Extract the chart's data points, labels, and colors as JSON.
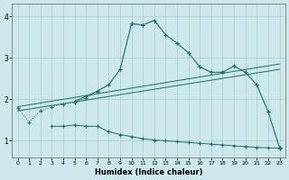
{
  "xlabel": "Humidex (Indice chaleur)",
  "background_color": "#cce8ec",
  "grid_color": "#aacccc",
  "line_color": "#1a6b6b",
  "xlim": [
    -0.5,
    23.5
  ],
  "ylim": [
    0.6,
    4.3
  ],
  "xticks": [
    0,
    1,
    2,
    3,
    4,
    5,
    6,
    7,
    8,
    9,
    10,
    11,
    12,
    13,
    14,
    15,
    16,
    17,
    18,
    19,
    20,
    21,
    22,
    23
  ],
  "yticks": [
    1,
    2,
    3,
    4
  ],
  "series1_x": [
    0,
    1,
    2,
    3,
    4,
    5,
    6,
    7,
    8,
    9,
    10,
    11,
    12,
    13,
    14,
    15,
    16,
    17,
    18,
    19,
    20,
    21,
    22,
    23
  ],
  "series1_y": [
    1.8,
    1.45,
    1.72,
    1.82,
    1.88,
    1.93,
    2.03,
    2.18,
    2.35,
    2.72,
    3.82,
    3.79,
    3.9,
    3.55,
    3.35,
    3.12,
    2.78,
    2.65,
    2.65,
    2.8,
    2.65,
    2.35,
    1.7,
    0.83
  ],
  "series2_x": [
    3,
    4,
    5,
    6,
    7,
    8,
    9,
    10,
    11,
    12,
    13,
    14,
    15,
    16,
    17,
    18,
    19,
    20,
    21,
    22,
    23
  ],
  "series2_y": [
    1.35,
    1.35,
    1.38,
    1.35,
    1.35,
    1.22,
    1.15,
    1.1,
    1.05,
    1.02,
    1.0,
    0.98,
    0.96,
    0.94,
    0.92,
    0.9,
    0.88,
    0.86,
    0.84,
    0.83,
    0.82
  ],
  "series3_x": [
    5,
    6,
    7,
    8,
    9,
    10,
    11,
    12,
    13,
    14,
    15,
    16,
    17,
    18,
    19,
    20,
    21,
    22,
    23
  ],
  "series3_y": [
    1.95,
    2.07,
    2.2,
    2.35,
    2.72,
    3.82,
    3.79,
    3.9,
    3.55,
    3.35,
    3.12,
    2.78,
    2.65,
    2.65,
    2.8,
    2.65,
    2.35,
    1.7,
    0.83
  ],
  "trend1_x": [
    0,
    23
  ],
  "trend1_y": [
    1.82,
    2.85
  ],
  "trend2_x": [
    0,
    23
  ],
  "trend2_y": [
    1.72,
    2.72
  ]
}
